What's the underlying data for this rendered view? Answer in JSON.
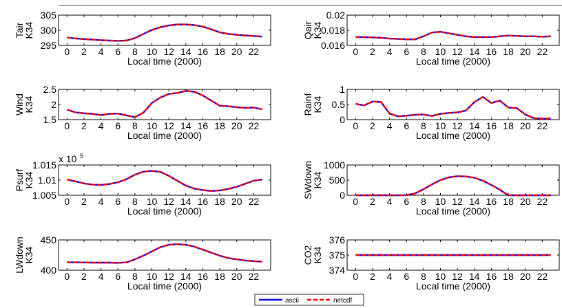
{
  "chart_data": [
    {
      "type": "line",
      "ylabel": "Tair",
      "ylabel2": "K34",
      "xlabel": "Local time (2000)",
      "ylim": [
        295,
        305
      ],
      "yticks": [
        "295",
        "300",
        "305"
      ],
      "ytick_values": [
        295,
        300,
        305
      ],
      "x": [
        0,
        1,
        2,
        3,
        4,
        5,
        6,
        7,
        8,
        9,
        10,
        11,
        12,
        13,
        14,
        15,
        16,
        17,
        18,
        19,
        20,
        21,
        22,
        23
      ],
      "series": [
        {
          "name": "ascii",
          "values": [
            297.6,
            297.3,
            297.1,
            296.9,
            296.7,
            296.6,
            296.5,
            296.6,
            297.4,
            298.8,
            300.1,
            301.0,
            301.6,
            301.9,
            301.9,
            301.7,
            301.2,
            300.3,
            299.3,
            298.8,
            298.5,
            298.3,
            298.1,
            297.9
          ]
        },
        {
          "name": "netcdf",
          "values": [
            297.6,
            297.3,
            297.1,
            296.9,
            296.7,
            296.6,
            296.5,
            296.6,
            297.4,
            298.8,
            300.1,
            301.0,
            301.6,
            301.9,
            301.9,
            301.7,
            301.2,
            300.3,
            299.3,
            298.8,
            298.5,
            298.3,
            298.1,
            297.9
          ]
        }
      ]
    },
    {
      "type": "line",
      "ylabel": "Qair",
      "ylabel2": "K34",
      "xlabel": "Local time (2000)",
      "ylim": [
        0.016,
        0.02
      ],
      "yticks": [
        "0.016",
        "0.018",
        "0.02"
      ],
      "ytick_values": [
        0.016,
        0.018,
        0.02
      ],
      "x": [
        0,
        1,
        2,
        3,
        4,
        5,
        6,
        7,
        8,
        9,
        10,
        11,
        12,
        13,
        14,
        15,
        16,
        17,
        18,
        19,
        20,
        21,
        22,
        23
      ],
      "series": [
        {
          "name": "ascii",
          "values": [
            0.0171,
            0.0171,
            0.01705,
            0.017,
            0.0169,
            0.01685,
            0.0168,
            0.0168,
            0.0172,
            0.0177,
            0.0178,
            0.0176,
            0.0174,
            0.0172,
            0.0171,
            0.0171,
            0.0171,
            0.0172,
            0.0173,
            0.01725,
            0.0172,
            0.0172,
            0.01715,
            0.0172
          ]
        },
        {
          "name": "netcdf",
          "values": [
            0.0171,
            0.0171,
            0.01705,
            0.017,
            0.0169,
            0.01685,
            0.0168,
            0.0168,
            0.0172,
            0.0177,
            0.0178,
            0.0176,
            0.0174,
            0.0172,
            0.0171,
            0.0171,
            0.0171,
            0.0172,
            0.0173,
            0.01725,
            0.0172,
            0.0172,
            0.01715,
            0.0172
          ]
        }
      ]
    },
    {
      "type": "line",
      "ylabel": "Wind",
      "ylabel2": "K34",
      "xlabel": "Local time (2000)",
      "ylim": [
        1.5,
        2.5
      ],
      "yticks": [
        "1.5",
        "2",
        "2.5"
      ],
      "ytick_values": [
        1.5,
        2,
        2.5
      ],
      "x": [
        0,
        1,
        2,
        3,
        4,
        5,
        6,
        7,
        8,
        9,
        10,
        11,
        12,
        13,
        14,
        15,
        16,
        17,
        18,
        19,
        20,
        21,
        22,
        23
      ],
      "series": [
        {
          "name": "ascii",
          "values": [
            1.83,
            1.74,
            1.71,
            1.69,
            1.65,
            1.69,
            1.7,
            1.64,
            1.58,
            1.73,
            2.05,
            2.23,
            2.35,
            2.38,
            2.45,
            2.42,
            2.3,
            2.13,
            1.96,
            1.94,
            1.91,
            1.89,
            1.9,
            1.84
          ]
        },
        {
          "name": "netcdf",
          "values": [
            1.83,
            1.74,
            1.71,
            1.69,
            1.65,
            1.69,
            1.7,
            1.64,
            1.58,
            1.73,
            2.05,
            2.23,
            2.35,
            2.38,
            2.45,
            2.42,
            2.3,
            2.13,
            1.96,
            1.94,
            1.91,
            1.89,
            1.9,
            1.84
          ]
        }
      ]
    },
    {
      "type": "line",
      "ylabel": "Rainf",
      "ylabel2": "K34",
      "xlabel": "Local time (2000)",
      "ylim": [
        0,
        1
      ],
      "yticks": [
        "0",
        "0.5",
        "1"
      ],
      "ytick_values": [
        0,
        0.5,
        1
      ],
      "x": [
        0,
        1,
        2,
        3,
        4,
        5,
        6,
        7,
        8,
        9,
        10,
        11,
        12,
        13,
        14,
        15,
        16,
        17,
        18,
        19,
        20,
        21,
        22,
        23
      ],
      "series": [
        {
          "name": "ascii",
          "values": [
            0.52,
            0.47,
            0.6,
            0.58,
            0.2,
            0.11,
            0.13,
            0.16,
            0.17,
            0.12,
            0.19,
            0.22,
            0.24,
            0.3,
            0.58,
            0.75,
            0.55,
            0.63,
            0.4,
            0.38,
            0.17,
            0.05,
            0.03,
            0.04
          ]
        },
        {
          "name": "netcdf",
          "values": [
            0.52,
            0.47,
            0.6,
            0.58,
            0.2,
            0.11,
            0.13,
            0.16,
            0.17,
            0.12,
            0.19,
            0.22,
            0.24,
            0.3,
            0.58,
            0.75,
            0.55,
            0.63,
            0.4,
            0.38,
            0.17,
            0.05,
            0.03,
            0.04
          ]
        }
      ]
    },
    {
      "type": "line",
      "ylabel": "Psurf",
      "ylabel2": "K34",
      "xlabel": "Local time (2000)",
      "ylim": [
        1.005,
        1.015
      ],
      "yticks": [
        "1.005",
        "1.01",
        "1.015"
      ],
      "ytick_values": [
        1.005,
        1.01,
        1.015
      ],
      "exponent_base": "x 10",
      "exponent_power": "5",
      "x": [
        0,
        1,
        2,
        3,
        4,
        5,
        6,
        7,
        8,
        9,
        10,
        11,
        12,
        13,
        14,
        15,
        16,
        17,
        18,
        19,
        20,
        21,
        22,
        23
      ],
      "series": [
        {
          "name": "ascii",
          "values": [
            1.0102,
            1.0096,
            1.0089,
            1.0085,
            1.0084,
            1.0087,
            1.0093,
            1.0103,
            1.0118,
            1.0128,
            1.0131,
            1.0127,
            1.0114,
            1.0098,
            1.0082,
            1.0072,
            1.0067,
            1.0064,
            1.0066,
            1.0071,
            1.0078,
            1.0088,
            1.0098,
            1.0102
          ]
        },
        {
          "name": "netcdf",
          "values": [
            1.0102,
            1.0096,
            1.0089,
            1.0085,
            1.0084,
            1.0087,
            1.0093,
            1.0103,
            1.0118,
            1.0128,
            1.0131,
            1.0127,
            1.0114,
            1.0098,
            1.0082,
            1.0072,
            1.0067,
            1.0064,
            1.0066,
            1.0071,
            1.0078,
            1.0088,
            1.0098,
            1.0102
          ]
        }
      ]
    },
    {
      "type": "line",
      "ylabel": "SWdown",
      "ylabel2": "K34",
      "xlabel": "Local time (2000)",
      "ylim": [
        0,
        1000
      ],
      "yticks": [
        "0",
        "500",
        "1000"
      ],
      "ytick_values": [
        0,
        500,
        1000
      ],
      "x": [
        0,
        1,
        2,
        3,
        4,
        5,
        6,
        7,
        8,
        9,
        10,
        11,
        12,
        13,
        14,
        15,
        16,
        17,
        18,
        19,
        20,
        21,
        22,
        23
      ],
      "series": [
        {
          "name": "ascii",
          "values": [
            0,
            0,
            0,
            0,
            0,
            0,
            5,
            60,
            200,
            360,
            500,
            590,
            630,
            620,
            580,
            480,
            340,
            180,
            0,
            0,
            0,
            0,
            0,
            0
          ]
        },
        {
          "name": "netcdf",
          "values": [
            0,
            0,
            0,
            0,
            0,
            0,
            5,
            60,
            200,
            360,
            500,
            590,
            630,
            620,
            580,
            480,
            340,
            180,
            0,
            0,
            0,
            0,
            0,
            0
          ]
        }
      ]
    },
    {
      "type": "line",
      "ylabel": "LWdown",
      "ylabel2": "K34",
      "xlabel": "Local time (2000)",
      "ylim": [
        400,
        450
      ],
      "yticks": [
        "400",
        "450"
      ],
      "ytick_values": [
        400,
        450
      ],
      "x": [
        0,
        1,
        2,
        3,
        4,
        5,
        6,
        7,
        8,
        9,
        10,
        11,
        12,
        13,
        14,
        15,
        16,
        17,
        18,
        19,
        20,
        21,
        22,
        23
      ],
      "series": [
        {
          "name": "ascii",
          "values": [
            413,
            413,
            412.8,
            412.5,
            412.5,
            412.5,
            412,
            413,
            418,
            424,
            431,
            438,
            442,
            443,
            442,
            439,
            434,
            429,
            424,
            420,
            418,
            416,
            415,
            414
          ]
        },
        {
          "name": "netcdf",
          "values": [
            413,
            413,
            412.8,
            412.5,
            412.5,
            412.5,
            412,
            413,
            418,
            424,
            431,
            438,
            442,
            443,
            442,
            439,
            434,
            429,
            424,
            420,
            418,
            416,
            415,
            414
          ]
        }
      ]
    },
    {
      "type": "line",
      "ylabel": "CO2",
      "ylabel2": "K34",
      "xlabel": "Local time (2000)",
      "ylim": [
        374,
        376
      ],
      "yticks": [
        "374",
        "375",
        "376"
      ],
      "ytick_values": [
        374,
        375,
        376
      ],
      "x": [
        0,
        1,
        2,
        3,
        4,
        5,
        6,
        7,
        8,
        9,
        10,
        11,
        12,
        13,
        14,
        15,
        16,
        17,
        18,
        19,
        20,
        21,
        22,
        23
      ],
      "series": [
        {
          "name": "ascii",
          "values": [
            375,
            375,
            375,
            375,
            375,
            375,
            375,
            375,
            375,
            375,
            375,
            375,
            375,
            375,
            375,
            375,
            375,
            375,
            375,
            375,
            375,
            375,
            375,
            375
          ]
        },
        {
          "name": "netcdf",
          "values": [
            375,
            375,
            375,
            375,
            375,
            375,
            375,
            375,
            375,
            375,
            375,
            375,
            375,
            375,
            375,
            375,
            375,
            375,
            375,
            375,
            375,
            375,
            375,
            375
          ]
        }
      ]
    }
  ],
  "xticks": [
    "0",
    "2",
    "4",
    "6",
    "8",
    "10",
    "12",
    "14",
    "16",
    "18",
    "20",
    "22"
  ],
  "xtick_values": [
    0,
    2,
    4,
    6,
    8,
    10,
    12,
    14,
    16,
    18,
    20,
    22
  ],
  "xlim": [
    -1,
    24
  ],
  "legend": {
    "placement": "bottom-center",
    "entries": [
      {
        "name": "ascii",
        "color": "#0000ff",
        "style": "solid"
      },
      {
        "name": "netcdf",
        "color": "#ff0000",
        "style": "dashed"
      }
    ]
  },
  "colors": {
    "ascii": "#0000ff",
    "netcdf": "#ff0000"
  }
}
